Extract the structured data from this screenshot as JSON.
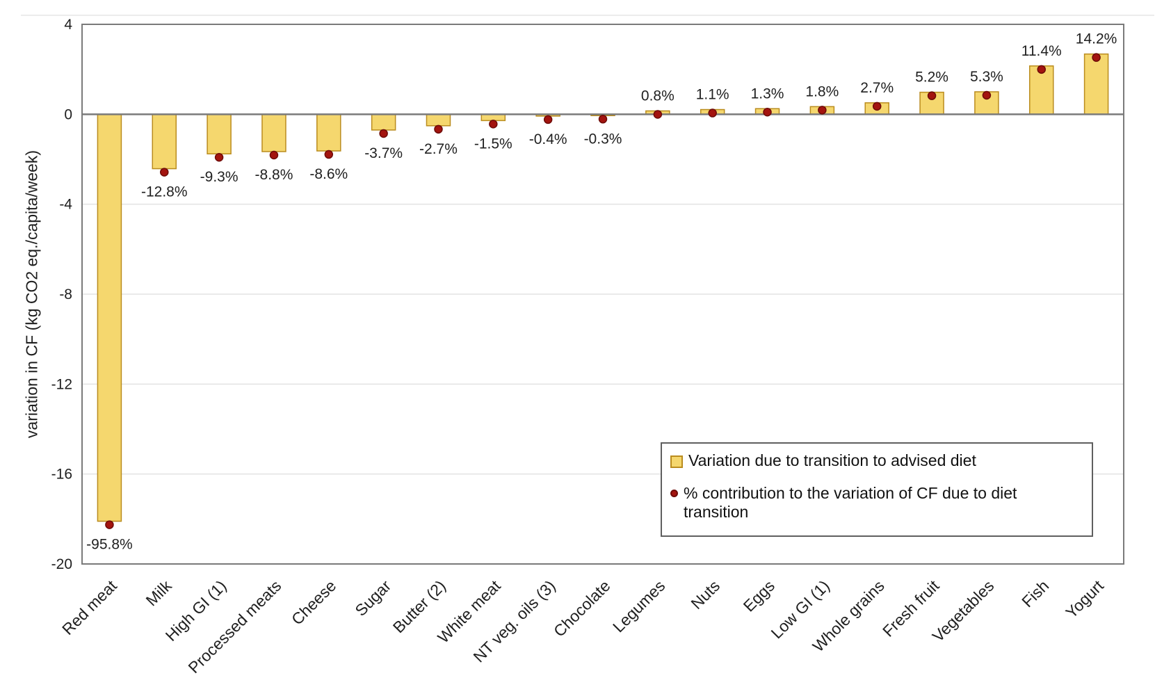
{
  "page": {
    "background": "#FFFFFF"
  },
  "chart_data": {
    "type": "bar",
    "title": "",
    "xlabel": "",
    "ylabel": "variation in CF (kg CO2 eq./capita/week)",
    "ylim": [
      -20,
      4
    ],
    "yticks": [
      4,
      0,
      -4,
      -8,
      -12,
      -16,
      -20
    ],
    "grid": "horizontal",
    "legend_position": "inside-bottom-right",
    "categories": [
      "Red meat",
      "Milk",
      "High GI (1)",
      "Processed meats",
      "Cheese",
      "Sugar",
      "Butter (2)",
      "White meat",
      "NT veg. oils (3)",
      "Chocolate",
      "Legumes",
      "Nuts",
      "Eggs",
      "Low GI (1)",
      "Whole grains",
      "Fresh fruit",
      "Vegetables",
      "Fish",
      "Yogurt"
    ],
    "series": [
      {
        "name": "Variation due to transition to advised diet",
        "type": "bar",
        "unit": "kg CO2 eq./capita/week",
        "values": [
          -18.1,
          -2.42,
          -1.76,
          -1.66,
          -1.63,
          -0.7,
          -0.51,
          -0.28,
          -0.08,
          -0.06,
          0.15,
          0.21,
          0.25,
          0.34,
          0.51,
          0.98,
          1.0,
          2.15,
          2.68
        ],
        "fill": "#F5D76E",
        "stroke": "#BA8C1E"
      },
      {
        "name": "% contribution to the variation of CF due to diet transition",
        "type": "point",
        "unit": "%",
        "values": [
          -95.8,
          -12.8,
          -9.3,
          -8.8,
          -8.6,
          -3.7,
          -2.7,
          -1.5,
          -0.4,
          -0.3,
          0.8,
          1.1,
          1.3,
          1.8,
          2.7,
          5.2,
          5.3,
          11.4,
          14.2
        ],
        "fill": "#A3140F",
        "stroke": "#6E0B08"
      }
    ],
    "point_labels": [
      "-95.8%",
      "-12.8%",
      "-9.3%",
      "-8.8%",
      "-8.6%",
      "-3.7%",
      "-2.7%",
      "-1.5%",
      "-0.4%",
      "-0.3%",
      "0.8%",
      "1.1%",
      "1.3%",
      "1.8%",
      "2.7%",
      "5.2%",
      "5.3%",
      "11.4%",
      "14.2%"
    ]
  },
  "colors": {
    "grid": "#E3E3E3",
    "faint_line": "#ECECEC",
    "axis": "#7A7A7A",
    "text": "#1F1F1F"
  }
}
